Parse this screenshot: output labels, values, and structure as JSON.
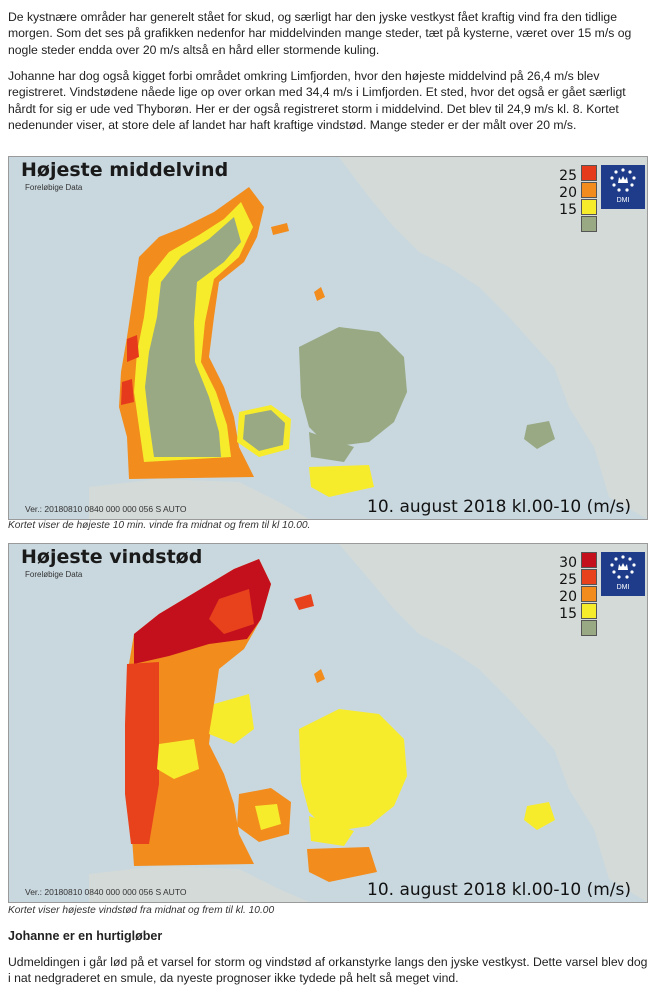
{
  "article": {
    "paragraph1": "De kystnære områder har generelt stået for skud, og særligt har den jyske vestkyst fået kraftig vind fra den tidlige morgen. Som det ses på grafikken nedenfor har middelvinden mange steder, tæt på kysterne, været over 15 m/s og nogle steder endda over 20 m/s altså en hård eller stormende kuling.",
    "paragraph2": "Johanne har dog også kigget forbi området omkring Limfjorden, hvor den højeste middelvind på 26,4 m/s blev registreret. Vindstødene nåede lige op over orkan med 34,4 m/s i Limfjorden. Et sted, hvor det også er gået særligt hårdt for sig er ude ved Thyborøn. Her er der også registreret storm i middelvind. Det blev til 24,9 m/s kl. 8. Kortet nedenunder viser, at store dele af landet har haft kraftige vindstød. Mange steder er der målt over 20 m/s.",
    "heading": "Johanne er en hurtigløber",
    "paragraph3": "Udmeldingen i går lød på et varsel for storm og vindstød af orkanstyrke langs den jyske vestkyst. Dette varsel blev dog i nat nedgraderet en smule, da nyeste prognoser ikke tydede på helt så meget vind."
  },
  "maps": [
    {
      "title": "Højeste middelvind",
      "subtitle": "Foreløbige Data",
      "version": "Ver.: 20180810 0840 000 000 056 S AUTO",
      "date_label": "10. august 2018 kl.00-10 (m/s)",
      "logo_text": "DMI",
      "caption": "Kortet viser de højeste 10 min. vinde fra midnat og frem til kl 10.00.",
      "legend": [
        {
          "label": "25",
          "color": "#e53b1c"
        },
        {
          "label": "20",
          "color": "#f28c1c"
        },
        {
          "label": "15",
          "color": "#f7ec2b"
        },
        {
          "label": "",
          "color": "#98a984"
        }
      ]
    },
    {
      "title": "Højeste vindstød",
      "subtitle": "Foreløbige Data",
      "version": "Ver.: 20180810 0840 000 000 056 S AUTO",
      "date_label": "10. august 2018 kl.00-10 (m/s)",
      "logo_text": "DMI",
      "caption": "Kortet viser højeste vindstød fra midnat og frem til kl. 10.00",
      "legend": [
        {
          "label": "30",
          "color": "#c4101c"
        },
        {
          "label": "25",
          "color": "#e8421c"
        },
        {
          "label": "20",
          "color": "#f28c1c"
        },
        {
          "label": "15",
          "color": "#f7ec2b"
        },
        {
          "label": "",
          "color": "#98a984"
        }
      ]
    }
  ],
  "colors": {
    "sea": "#c9d8df",
    "neighbour_land": "#d4dad7",
    "logo_bg": "#1e3c8a"
  }
}
